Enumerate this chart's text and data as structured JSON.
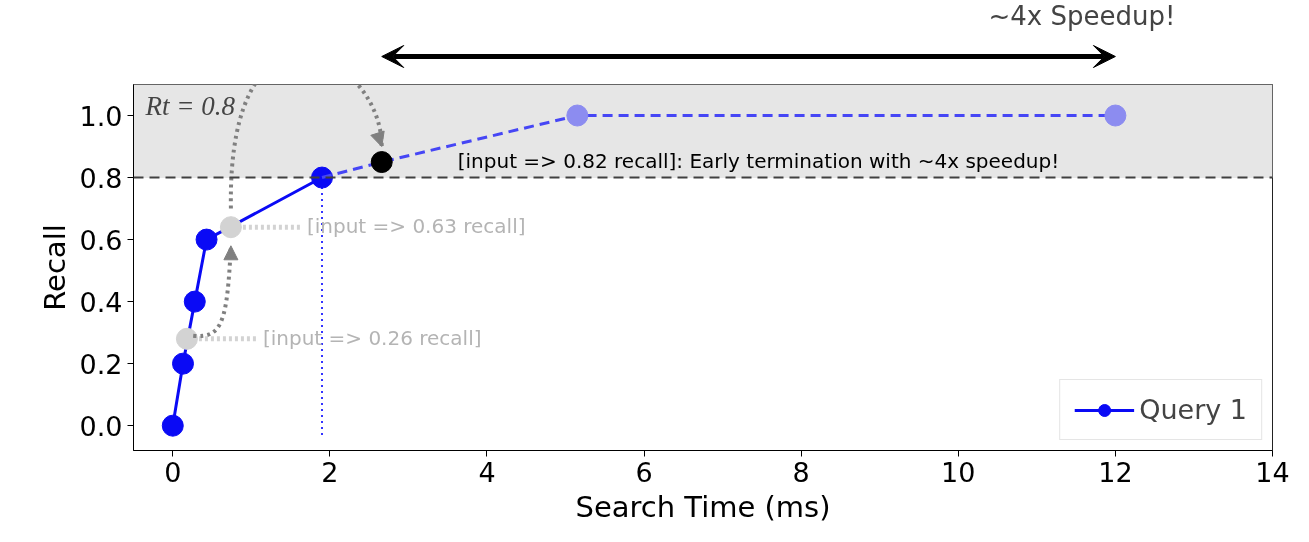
{
  "chart_data": {
    "type": "line",
    "xlabel": "Search Time (ms)",
    "ylabel": "Recall",
    "xlim": [
      -0.5,
      14
    ],
    "ylim": [
      -0.08,
      1.1
    ],
    "xticks": [
      0,
      2,
      4,
      6,
      8,
      10,
      12,
      14
    ],
    "yticks": [
      {
        "value": 0,
        "label": "0.0"
      },
      {
        "value": 0.2,
        "label": "0.2"
      },
      {
        "value": 0.4,
        "label": "0.4"
      },
      {
        "value": 0.6,
        "label": "0.6"
      },
      {
        "value": 0.8,
        "label": "0.8"
      },
      {
        "value": 1.0,
        "label": "1.0"
      }
    ],
    "series": [
      {
        "name": "Query 1",
        "color": "#0a0af5",
        "x": [
          0,
          0.13,
          0.28,
          0.43,
          1.9
        ],
        "values": [
          0,
          0.2,
          0.4,
          0.6,
          0.8
        ],
        "marker": "circle",
        "line_style": "solid"
      },
      {
        "color": "#4646f5",
        "x": [
          1.9,
          2.66,
          5.15,
          12
        ],
        "values": [
          0.8,
          0.85,
          1.0,
          1.0
        ],
        "marker": "none",
        "line_style": "dashed"
      },
      {
        "type": "scatter",
        "color": "#8c8cf0",
        "x": [
          5.15,
          12
        ],
        "values": [
          1.0,
          1.0
        ],
        "marker": "circle"
      },
      {
        "type": "scatter",
        "color": "#d3d3d3",
        "x": [
          0.18,
          0.74
        ],
        "values": [
          0.28,
          0.64
        ],
        "marker": "circle"
      },
      {
        "type": "scatter",
        "color": "#000000",
        "x": [
          2.66
        ],
        "values": [
          0.85
        ],
        "marker": "circle"
      }
    ],
    "ref_lines": [
      {
        "axis": "y",
        "value": 0.8,
        "label": "Rt = 0.8",
        "color": "#404040",
        "line_style": "dashed"
      },
      {
        "axis": "x",
        "value": 1.9,
        "color": "#3333ff",
        "line_style": "dotted"
      }
    ],
    "bands": [
      {
        "axis": "y",
        "from": 0.8,
        "to": 1.1,
        "color": "#e6e6e6"
      }
    ],
    "annotations": [
      "[input => 0.26 recall]",
      "[input => 0.63 recall]",
      "[input => 0.82 recall]: Early termination with ~4x speedup!",
      "~4x Speedup!"
    ],
    "legend": "bottom right",
    "grid": false
  }
}
